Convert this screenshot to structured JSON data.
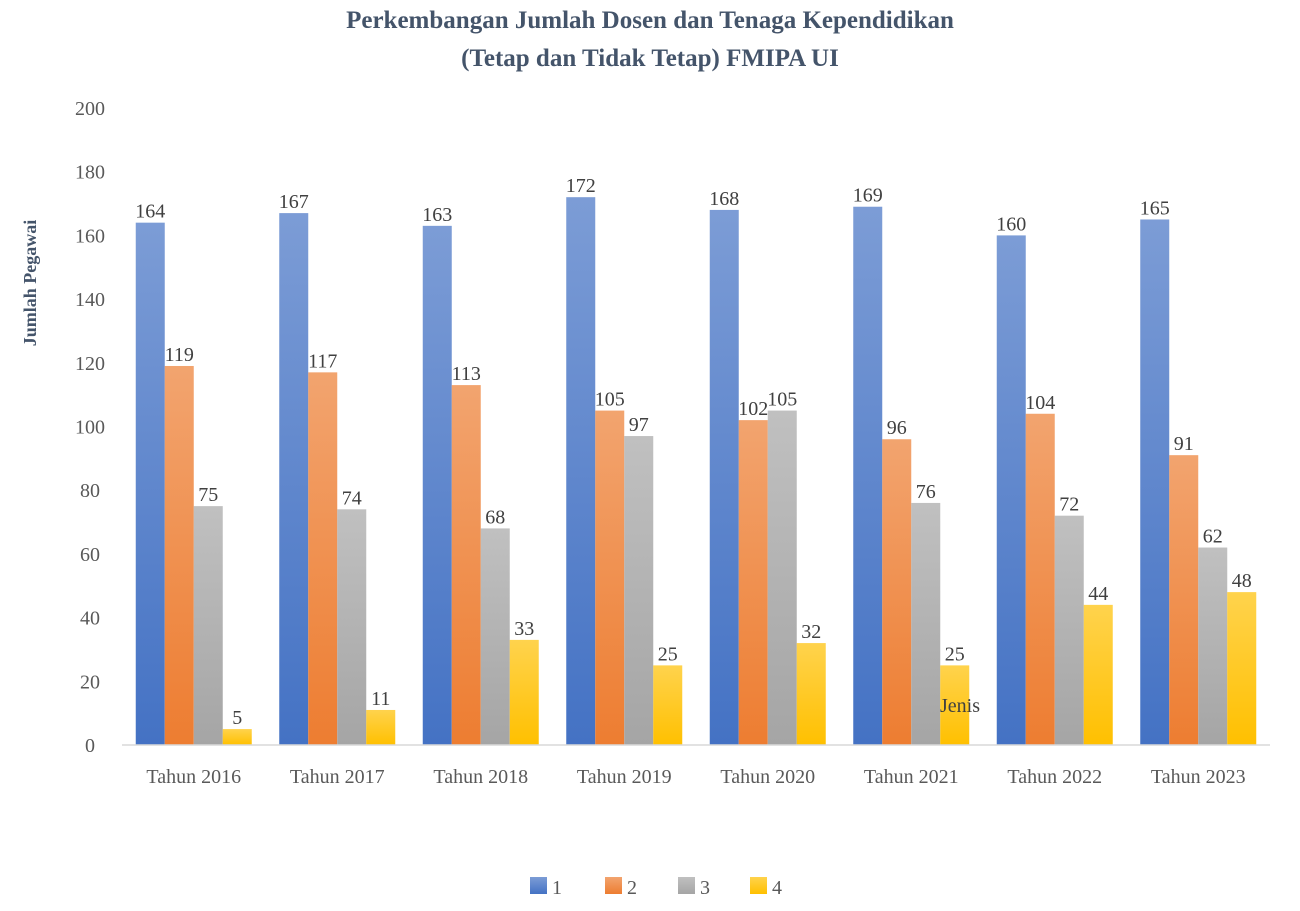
{
  "chart_data": {
    "type": "bar",
    "title": [
      "Perkembangan Jumlah Dosen dan Tenaga Kependidikan",
      "(Tetap dan Tidak Tetap) FMIPA UI"
    ],
    "xlabel": "",
    "ylabel": "Jumlah Pegawai",
    "ylim": [
      0,
      200
    ],
    "yticks": [
      0,
      20,
      40,
      60,
      80,
      100,
      120,
      140,
      160,
      180,
      200
    ],
    "grid": false,
    "legend": "bottom",
    "annotation": "Jenis",
    "categories": [
      "Tahun 2016",
      "Tahun 2017",
      "Tahun 2018",
      "Tahun 2019",
      "Tahun 2020",
      "Tahun 2021",
      "Tahun 2022",
      "Tahun 2023"
    ],
    "series": [
      {
        "name": "1",
        "color": "#4472c4",
        "values": [
          164,
          167,
          163,
          172,
          168,
          169,
          160,
          165
        ]
      },
      {
        "name": "2",
        "color": "#ed7d31",
        "values": [
          119,
          117,
          113,
          105,
          102,
          96,
          104,
          91
        ]
      },
      {
        "name": "3",
        "color": "#a5a5a5",
        "values": [
          75,
          74,
          68,
          97,
          105,
          76,
          72,
          62
        ]
      },
      {
        "name": "4",
        "color": "#ffc000",
        "values": [
          5,
          11,
          33,
          25,
          32,
          25,
          44,
          48
        ]
      }
    ]
  }
}
